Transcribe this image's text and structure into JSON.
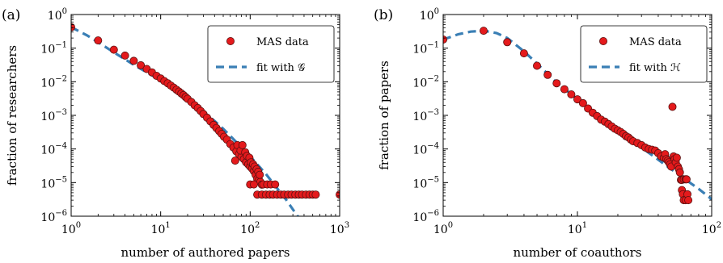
{
  "chart_data": [
    {
      "type": "scatter",
      "panel_label": "(a)",
      "xlabel": "number of authored papers",
      "ylabel": "fraction of researchers",
      "x_scale": "log",
      "y_scale": "log",
      "xlim": [
        1,
        1000
      ],
      "ylim": [
        1e-06,
        1
      ],
      "x_ticks": [
        {
          "value": 1,
          "base": "10",
          "exp": "0"
        },
        {
          "value": 10,
          "base": "10",
          "exp": "1"
        },
        {
          "value": 100,
          "base": "10",
          "exp": "2"
        },
        {
          "value": 1000,
          "base": "10",
          "exp": "3"
        }
      ],
      "y_ticks": [
        {
          "value": 1e-06,
          "base": "10",
          "exp": "−6"
        },
        {
          "value": 1e-05,
          "base": "10",
          "exp": "−5"
        },
        {
          "value": 0.0001,
          "base": "10",
          "exp": "−4"
        },
        {
          "value": 0.001,
          "base": "10",
          "exp": "−3"
        },
        {
          "value": 0.01,
          "base": "10",
          "exp": "−2"
        },
        {
          "value": 0.1,
          "base": "10",
          "exp": "−1"
        },
        {
          "value": 1,
          "base": "10",
          "exp": "0"
        }
      ],
      "grid": false,
      "legend_position": "top-right",
      "series": [
        {
          "name": "MAS data",
          "style": "markers",
          "color": "#e41a1c",
          "edge_color": "#5a1010",
          "points": [
            [
              1,
              0.42
            ],
            [
              2,
              0.17
            ],
            [
              3,
              0.09
            ],
            [
              4,
              0.06
            ],
            [
              5,
              0.042
            ],
            [
              6,
              0.031
            ],
            [
              7,
              0.024
            ],
            [
              8,
              0.019
            ],
            [
              9,
              0.015
            ],
            [
              10,
              0.0125
            ],
            [
              11,
              0.0105
            ],
            [
              12,
              0.009
            ],
            [
              13,
              0.0077
            ],
            [
              14,
              0.0067
            ],
            [
              15,
              0.0058
            ],
            [
              16,
              0.0051
            ],
            [
              17,
              0.0045
            ],
            [
              18,
              0.004
            ],
            [
              19,
              0.0035
            ],
            [
              20,
              0.0031
            ],
            [
              22,
              0.0025
            ],
            [
              24,
              0.002
            ],
            [
              26,
              0.00165
            ],
            [
              28,
              0.00135
            ],
            [
              30,
              0.0011
            ],
            [
              33,
              0.00085
            ],
            [
              36,
              0.00066
            ],
            [
              39,
              0.00052
            ],
            [
              42,
              0.00042
            ],
            [
              45,
              0.00034
            ],
            [
              48,
              0.00028
            ],
            [
              51,
              0.00023
            ],
            [
              55,
              0.00019
            ],
            [
              60,
              0.00014
            ],
            [
              65,
              0.00011
            ],
            [
              70,
              8.5e-05
            ],
            [
              75,
              7e-05
            ],
            [
              80,
              5.8e-05
            ],
            [
              85,
              5e-05
            ],
            [
              90,
              4e-05
            ],
            [
              95,
              3.5e-05
            ],
            [
              100,
              3e-05
            ],
            [
              105,
              2.6e-05
            ],
            [
              110,
              2.2e-05
            ],
            [
              115,
              1.7e-05
            ],
            [
              120,
              1.3e-05
            ],
            [
              125,
              1.2e-05
            ],
            [
              130,
              1.05e-05
            ],
            [
              135,
              8.7e-06
            ],
            [
              68,
              4.5e-05
            ],
            [
              72,
              0.00013
            ],
            [
              78,
              9e-05
            ],
            [
              82,
              0.00013
            ],
            [
              88,
              8e-05
            ],
            [
              92,
              6.2e-05
            ],
            [
              98,
              5.5e-05
            ],
            [
              102,
              4e-05
            ],
            [
              108,
              3.5e-05
            ],
            [
              112,
              3e-05
            ],
            [
              118,
              2.5e-05
            ],
            [
              123,
              2.1e-05
            ],
            [
              128,
              1.7e-05
            ],
            [
              100,
              8.8e-06
            ],
            [
              110,
              8.8e-06
            ],
            [
              140,
              8.8e-06
            ],
            [
              155,
              8.8e-06
            ],
            [
              170,
              8.8e-06
            ],
            [
              190,
              8.8e-06
            ],
            [
              120,
              4.4e-06
            ],
            [
              135,
              4.4e-06
            ],
            [
              150,
              4.4e-06
            ],
            [
              165,
              4.4e-06
            ],
            [
              180,
              4.4e-06
            ],
            [
              200,
              4.4e-06
            ],
            [
              220,
              4.4e-06
            ],
            [
              240,
              4.4e-06
            ],
            [
              265,
              4.4e-06
            ],
            [
              290,
              4.4e-06
            ],
            [
              320,
              4.4e-06
            ],
            [
              350,
              4.4e-06
            ],
            [
              380,
              4.4e-06
            ],
            [
              420,
              4.4e-06
            ],
            [
              460,
              4.4e-06
            ],
            [
              500,
              4.4e-06
            ],
            [
              540,
              4.4e-06
            ],
            [
              1000,
              4.4e-06
            ]
          ]
        },
        {
          "name": "fit with 𝒢",
          "style": "dashed-line",
          "color": "#3a7fb5",
          "points": [
            [
              1,
              0.42
            ],
            [
              1.5,
              0.24
            ],
            [
              2,
              0.15
            ],
            [
              3,
              0.075
            ],
            [
              5,
              0.032
            ],
            [
              7,
              0.019
            ],
            [
              10,
              0.011
            ],
            [
              15,
              0.0052
            ],
            [
              20,
              0.003
            ],
            [
              30,
              0.0013
            ],
            [
              40,
              0.00068
            ],
            [
              50,
              0.0004
            ],
            [
              70,
              0.00016
            ],
            [
              100,
              6e-05
            ],
            [
              150,
              1.8e-05
            ],
            [
              200,
              6.8e-06
            ],
            [
              250,
              3.2e-06
            ],
            [
              300,
              1.6e-06
            ],
            [
              350,
              9e-07
            ],
            [
              380,
              6e-07
            ]
          ]
        }
      ]
    },
    {
      "type": "scatter",
      "panel_label": "(b)",
      "xlabel": "number of coauthors",
      "ylabel": "fraction of papers",
      "x_scale": "log",
      "y_scale": "log",
      "xlim": [
        1,
        100
      ],
      "ylim": [
        1e-06,
        1
      ],
      "x_ticks": [
        {
          "value": 1,
          "base": "10",
          "exp": "0"
        },
        {
          "value": 10,
          "base": "10",
          "exp": "1"
        },
        {
          "value": 100,
          "base": "10",
          "exp": "2"
        }
      ],
      "y_ticks": [
        {
          "value": 1e-06,
          "base": "10",
          "exp": "−6"
        },
        {
          "value": 1e-05,
          "base": "10",
          "exp": "−5"
        },
        {
          "value": 0.0001,
          "base": "10",
          "exp": "−4"
        },
        {
          "value": 0.001,
          "base": "10",
          "exp": "−3"
        },
        {
          "value": 0.01,
          "base": "10",
          "exp": "−2"
        },
        {
          "value": 0.1,
          "base": "10",
          "exp": "−1"
        },
        {
          "value": 1,
          "base": "10",
          "exp": "0"
        }
      ],
      "grid": false,
      "legend_position": "top-right",
      "series": [
        {
          "name": "MAS data",
          "style": "markers",
          "color": "#e41a1c",
          "edge_color": "#5a1010",
          "points": [
            [
              1,
              0.18
            ],
            [
              2,
              0.33
            ],
            [
              3,
              0.15
            ],
            [
              4,
              0.07
            ],
            [
              5,
              0.03
            ],
            [
              6,
              0.016
            ],
            [
              7,
              0.009
            ],
            [
              8,
              0.006
            ],
            [
              9,
              0.0042
            ],
            [
              10,
              0.003
            ],
            [
              11,
              0.0023
            ],
            [
              12,
              0.0016
            ],
            [
              13,
              0.0012
            ],
            [
              14,
              0.00095
            ],
            [
              15,
              0.00075
            ],
            [
              16,
              0.00065
            ],
            [
              17,
              0.00055
            ],
            [
              18,
              0.00047
            ],
            [
              19,
              0.0004
            ],
            [
              20,
              0.00036
            ],
            [
              21,
              0.00032
            ],
            [
              22,
              0.00028
            ],
            [
              23,
              0.00024
            ],
            [
              24,
              0.00022
            ],
            [
              25,
              0.00019
            ],
            [
              26,
              0.00017
            ],
            [
              28,
              0.00015
            ],
            [
              30,
              0.00013
            ],
            [
              32,
              0.00011
            ],
            [
              34,
              0.0001
            ],
            [
              36,
              9.5e-05
            ],
            [
              38,
              9e-05
            ],
            [
              40,
              7.5e-05
            ],
            [
              42,
              6e-05
            ],
            [
              44,
              5.5e-05
            ],
            [
              45,
              7e-05
            ],
            [
              46,
              5e-05
            ],
            [
              47,
              4.5e-05
            ],
            [
              48,
              4e-05
            ],
            [
              49,
              3.5e-05
            ],
            [
              50,
              3e-05
            ],
            [
              51,
              0.0018
            ],
            [
              52,
              6e-05
            ],
            [
              53,
              5e-05
            ],
            [
              54,
              4e-05
            ],
            [
              55,
              5.5e-05
            ],
            [
              56,
              3e-05
            ],
            [
              57,
              2.5e-05
            ],
            [
              58,
              2e-05
            ],
            [
              59,
              1.2e-05
            ],
            [
              60,
              1.2e-05
            ],
            [
              62,
              1.25e-05
            ],
            [
              64,
              1.25e-05
            ],
            [
              65,
              1.25e-05
            ],
            [
              60,
              6e-06
            ],
            [
              61,
              4.5e-06
            ],
            [
              62,
              3e-06
            ],
            [
              64,
              3e-06
            ],
            [
              66,
              4.5e-06
            ],
            [
              67,
              3e-06
            ]
          ]
        },
        {
          "name": "fit with ℋ",
          "style": "dashed-line",
          "color": "#3a7fb5",
          "points": [
            [
              1,
              0.18
            ],
            [
              1.3,
              0.26
            ],
            [
              1.6,
              0.31
            ],
            [
              2,
              0.33
            ],
            [
              2.5,
              0.28
            ],
            [
              3,
              0.2
            ],
            [
              4,
              0.08
            ],
            [
              5,
              0.035
            ],
            [
              6,
              0.017
            ],
            [
              7,
              0.0095
            ],
            [
              8,
              0.0062
            ],
            [
              10,
              0.003
            ],
            [
              12,
              0.0017
            ],
            [
              15,
              0.00088
            ],
            [
              20,
              0.00037
            ],
            [
              25,
              0.00019
            ],
            [
              30,
              0.00011
            ],
            [
              40,
              4.8e-05
            ],
            [
              50,
              2.5e-05
            ],
            [
              60,
              1.5e-05
            ],
            [
              70,
              9.5e-06
            ],
            [
              80,
              6.5e-06
            ],
            [
              90,
              4.5e-06
            ],
            [
              100,
              3.2e-06
            ]
          ]
        }
      ]
    }
  ]
}
